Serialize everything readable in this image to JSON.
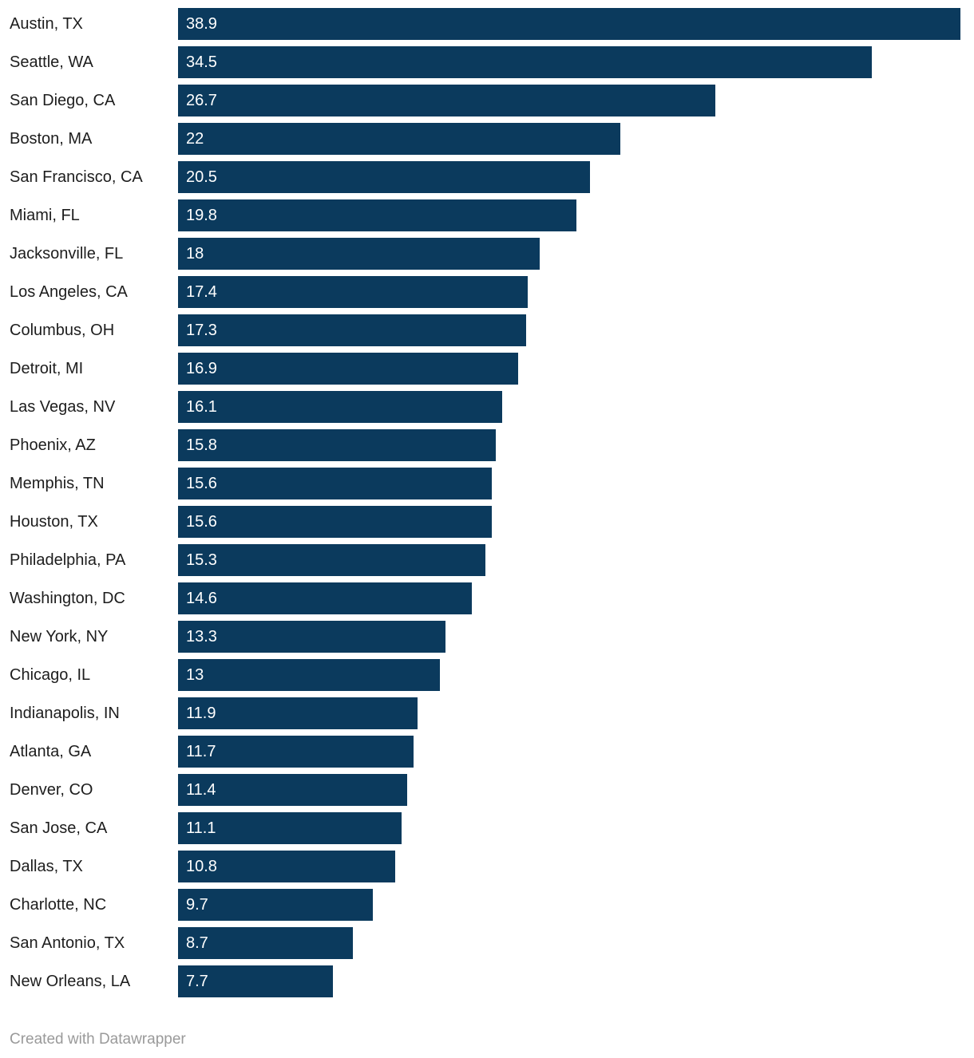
{
  "chart_data": {
    "type": "bar",
    "orientation": "horizontal",
    "title": "",
    "xlabel": "",
    "ylabel": "",
    "xlim": [
      0,
      38.9
    ],
    "grid": false,
    "legend": false,
    "bar_color": "#0b3a5d",
    "value_label_color": "#ffffff",
    "category_label_color": "#1d1d1d",
    "categories": [
      "Austin, TX",
      "Seattle, WA",
      "San Diego, CA",
      "Boston, MA",
      "San Francisco, CA",
      "Miami, FL",
      "Jacksonville, FL",
      "Los Angeles, CA",
      "Columbus, OH",
      "Detroit, MI",
      "Las Vegas, NV",
      "Phoenix, AZ",
      "Memphis, TN",
      "Houston, TX",
      "Philadelphia, PA",
      "Washington, DC",
      "New York, NY",
      "Chicago, IL",
      "Indianapolis, IN",
      "Atlanta, GA",
      "Denver, CO",
      "San Jose, CA",
      "Dallas, TX",
      "Charlotte, NC",
      "San Antonio, TX",
      "New Orleans, LA"
    ],
    "values": [
      38.9,
      34.5,
      26.7,
      22,
      20.5,
      19.8,
      18,
      17.4,
      17.3,
      16.9,
      16.1,
      15.8,
      15.6,
      15.6,
      15.3,
      14.6,
      13.3,
      13,
      11.9,
      11.7,
      11.4,
      11.1,
      10.8,
      9.7,
      8.7,
      7.7
    ]
  },
  "footer": {
    "credit": "Created with Datawrapper"
  }
}
